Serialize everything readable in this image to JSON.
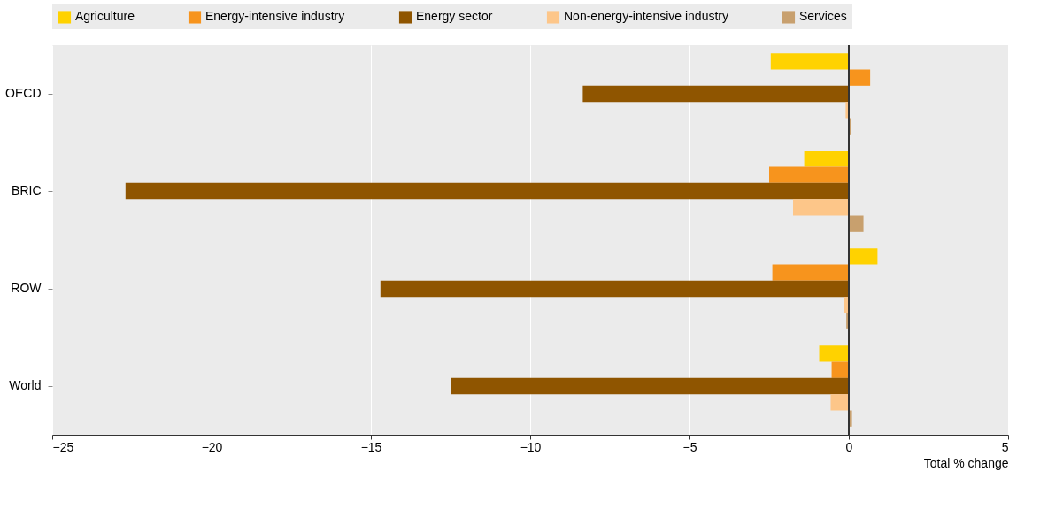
{
  "chart_data": {
    "type": "bar",
    "orientation": "horizontal",
    "xlabel": "Total % change",
    "categories": [
      "OECD",
      "BRIC",
      "ROW",
      "World"
    ],
    "series": [
      {
        "name": "Agriculture",
        "color": "#ffd200",
        "values": [
          -2.45,
          -1.4,
          0.9,
          -0.93
        ]
      },
      {
        "name": "Energy-intensive industry",
        "color": "#f7941d",
        "values": [
          0.67,
          -2.5,
          -2.4,
          -0.54
        ]
      },
      {
        "name": "Energy sector",
        "color": "#8f5500",
        "values": [
          -8.35,
          -22.7,
          -14.7,
          -12.5
        ]
      },
      {
        "name": "Non-energy-intensive industry",
        "color": "#fdc689",
        "values": [
          -0.1,
          -1.75,
          -0.16,
          -0.57
        ]
      },
      {
        "name": "Services",
        "color": "#c8a06e",
        "values": [
          0.07,
          0.46,
          -0.08,
          0.1
        ]
      }
    ],
    "xlim": [
      -25,
      5
    ],
    "xticks": [
      -25,
      -20,
      -15,
      -10,
      -5,
      0,
      5
    ],
    "grid": "x",
    "legend": "top"
  }
}
